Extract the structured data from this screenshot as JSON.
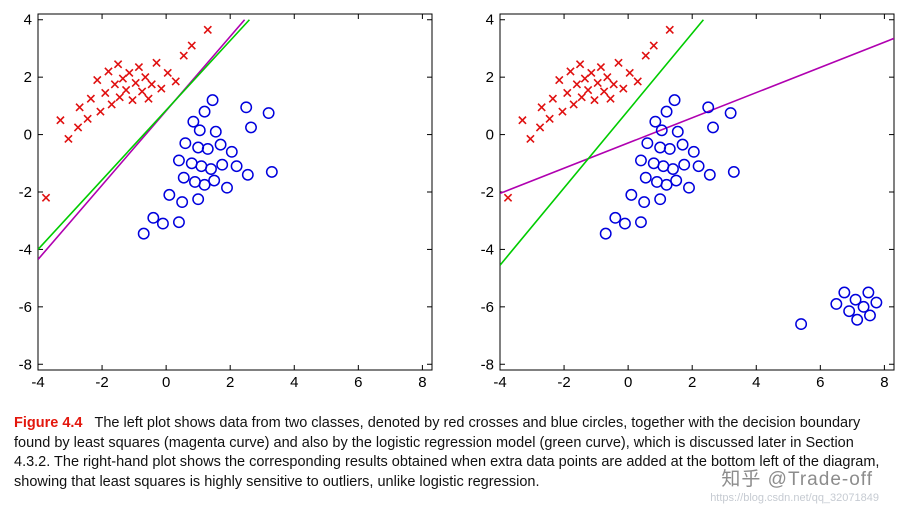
{
  "caption": {
    "label": "Figure 4.4",
    "label_color": "#e3170d",
    "text": "The left plot shows data from two classes, denoted by red crosses and blue circles, together with the decision boundary found by least squares (magenta curve) and also by the logistic regression model (green curve), which is discussed later in Section 4.3.2. The right-hand plot shows the corresponding results obtained when extra data points are added at the bottom left of the diagram, showing that least squares is highly sensitive to outliers, unlike logistic regression."
  },
  "watermarks": {
    "zhihu": "知乎 @Trade-off",
    "url": "https://blog.csdn.net/qq_32071849"
  },
  "colors": {
    "cross": "#e01010",
    "circle": "#0000dd",
    "least_squares": "#b000b0",
    "logistic": "#00cc00"
  },
  "chart_data": [
    {
      "type": "scatter",
      "title": "",
      "xlabel": "",
      "ylabel": "",
      "xlim": [
        -4,
        8.3
      ],
      "ylim": [
        -8.2,
        4.2
      ],
      "xticks": [
        -4,
        -2,
        0,
        2,
        4,
        6,
        8
      ],
      "yticks": [
        -8,
        -6,
        -4,
        -2,
        0,
        2,
        4
      ],
      "grid": false,
      "legend": "none",
      "series": [
        {
          "name": "class-1-red-crosses",
          "marker": "cross",
          "color": "#e01010",
          "points": [
            [
              -3.75,
              -2.2
            ],
            [
              -3.3,
              0.5
            ],
            [
              -3.05,
              -0.15
            ],
            [
              -2.75,
              0.25
            ],
            [
              -2.7,
              0.95
            ],
            [
              -2.45,
              0.55
            ],
            [
              -2.35,
              1.25
            ],
            [
              -2.15,
              1.9
            ],
            [
              -2.05,
              0.8
            ],
            [
              -1.9,
              1.45
            ],
            [
              -1.8,
              2.2
            ],
            [
              -1.7,
              1.05
            ],
            [
              -1.6,
              1.75
            ],
            [
              -1.5,
              2.45
            ],
            [
              -1.45,
              1.3
            ],
            [
              -1.35,
              1.95
            ],
            [
              -1.25,
              1.55
            ],
            [
              -1.15,
              2.15
            ],
            [
              -1.05,
              1.2
            ],
            [
              -0.95,
              1.8
            ],
            [
              -0.85,
              2.35
            ],
            [
              -0.75,
              1.5
            ],
            [
              -0.65,
              2.0
            ],
            [
              -0.55,
              1.25
            ],
            [
              -0.45,
              1.75
            ],
            [
              -0.3,
              2.5
            ],
            [
              -0.15,
              1.6
            ],
            [
              0.05,
              2.15
            ],
            [
              0.3,
              1.85
            ],
            [
              0.55,
              2.75
            ],
            [
              0.8,
              3.1
            ],
            [
              1.3,
              3.65
            ]
          ]
        },
        {
          "name": "class-2-blue-circles",
          "marker": "circle",
          "color": "#0000dd",
          "points": [
            [
              1.45,
              1.2
            ],
            [
              2.5,
              0.95
            ],
            [
              3.2,
              0.75
            ],
            [
              1.2,
              0.8
            ],
            [
              0.85,
              0.45
            ],
            [
              1.05,
              0.15
            ],
            [
              1.55,
              0.1
            ],
            [
              2.65,
              0.25
            ],
            [
              0.6,
              -0.3
            ],
            [
              1.0,
              -0.45
            ],
            [
              1.3,
              -0.5
            ],
            [
              1.7,
              -0.35
            ],
            [
              2.05,
              -0.6
            ],
            [
              0.4,
              -0.9
            ],
            [
              0.8,
              -1.0
            ],
            [
              1.1,
              -1.1
            ],
            [
              1.4,
              -1.2
            ],
            [
              1.75,
              -1.05
            ],
            [
              2.2,
              -1.1
            ],
            [
              2.55,
              -1.4
            ],
            [
              3.3,
              -1.3
            ],
            [
              0.55,
              -1.5
            ],
            [
              0.9,
              -1.65
            ],
            [
              1.2,
              -1.75
            ],
            [
              1.5,
              -1.6
            ],
            [
              1.9,
              -1.85
            ],
            [
              0.1,
              -2.1
            ],
            [
              0.5,
              -2.35
            ],
            [
              1.0,
              -2.25
            ],
            [
              -0.4,
              -2.9
            ],
            [
              -0.1,
              -3.1
            ],
            [
              0.4,
              -3.05
            ],
            [
              -0.7,
              -3.45
            ]
          ]
        }
      ],
      "lines": [
        {
          "name": "least-squares-boundary",
          "color": "#b000b0",
          "x1": -4,
          "y1": -4.35,
          "x2": 2.45,
          "y2": 4.0
        },
        {
          "name": "logistic-regression-boundary",
          "color": "#00cc00",
          "x1": -4,
          "y1": -4.0,
          "x2": 2.6,
          "y2": 4.0
        }
      ]
    },
    {
      "type": "scatter",
      "title": "",
      "xlabel": "",
      "ylabel": "",
      "xlim": [
        -4,
        8.3
      ],
      "ylim": [
        -8.2,
        4.2
      ],
      "xticks": [
        -4,
        -2,
        0,
        2,
        4,
        6,
        8
      ],
      "yticks": [
        -8,
        -6,
        -4,
        -2,
        0,
        2,
        4
      ],
      "grid": false,
      "legend": "none",
      "series": [
        {
          "name": "class-1-red-crosses",
          "marker": "cross",
          "color": "#e01010",
          "points": [
            [
              -3.75,
              -2.2
            ],
            [
              -3.3,
              0.5
            ],
            [
              -3.05,
              -0.15
            ],
            [
              -2.75,
              0.25
            ],
            [
              -2.7,
              0.95
            ],
            [
              -2.45,
              0.55
            ],
            [
              -2.35,
              1.25
            ],
            [
              -2.15,
              1.9
            ],
            [
              -2.05,
              0.8
            ],
            [
              -1.9,
              1.45
            ],
            [
              -1.8,
              2.2
            ],
            [
              -1.7,
              1.05
            ],
            [
              -1.6,
              1.75
            ],
            [
              -1.5,
              2.45
            ],
            [
              -1.45,
              1.3
            ],
            [
              -1.35,
              1.95
            ],
            [
              -1.25,
              1.55
            ],
            [
              -1.15,
              2.15
            ],
            [
              -1.05,
              1.2
            ],
            [
              -0.95,
              1.8
            ],
            [
              -0.85,
              2.35
            ],
            [
              -0.75,
              1.5
            ],
            [
              -0.65,
              2.0
            ],
            [
              -0.55,
              1.25
            ],
            [
              -0.45,
              1.75
            ],
            [
              -0.3,
              2.5
            ],
            [
              -0.15,
              1.6
            ],
            [
              0.05,
              2.15
            ],
            [
              0.3,
              1.85
            ],
            [
              0.55,
              2.75
            ],
            [
              0.8,
              3.1
            ],
            [
              1.3,
              3.65
            ]
          ]
        },
        {
          "name": "class-2-blue-circles",
          "marker": "circle",
          "color": "#0000dd",
          "points": [
            [
              1.45,
              1.2
            ],
            [
              2.5,
              0.95
            ],
            [
              3.2,
              0.75
            ],
            [
              1.2,
              0.8
            ],
            [
              0.85,
              0.45
            ],
            [
              1.05,
              0.15
            ],
            [
              1.55,
              0.1
            ],
            [
              2.65,
              0.25
            ],
            [
              0.6,
              -0.3
            ],
            [
              1.0,
              -0.45
            ],
            [
              1.3,
              -0.5
            ],
            [
              1.7,
              -0.35
            ],
            [
              2.05,
              -0.6
            ],
            [
              0.4,
              -0.9
            ],
            [
              0.8,
              -1.0
            ],
            [
              1.1,
              -1.1
            ],
            [
              1.4,
              -1.2
            ],
            [
              1.75,
              -1.05
            ],
            [
              2.2,
              -1.1
            ],
            [
              2.55,
              -1.4
            ],
            [
              3.3,
              -1.3
            ],
            [
              0.55,
              -1.5
            ],
            [
              0.9,
              -1.65
            ],
            [
              1.2,
              -1.75
            ],
            [
              1.5,
              -1.6
            ],
            [
              1.9,
              -1.85
            ],
            [
              0.1,
              -2.1
            ],
            [
              0.5,
              -2.35
            ],
            [
              1.0,
              -2.25
            ],
            [
              -0.4,
              -2.9
            ],
            [
              -0.1,
              -3.1
            ],
            [
              0.4,
              -3.05
            ],
            [
              -0.7,
              -3.45
            ]
          ]
        },
        {
          "name": "class-2-blue-circles-outliers",
          "marker": "circle",
          "color": "#0000dd",
          "points": [
            [
              5.4,
              -6.6
            ],
            [
              6.5,
              -5.9
            ],
            [
              6.75,
              -5.5
            ],
            [
              6.9,
              -6.15
            ],
            [
              7.1,
              -5.75
            ],
            [
              7.15,
              -6.45
            ],
            [
              7.35,
              -6.0
            ],
            [
              7.5,
              -5.5
            ],
            [
              7.55,
              -6.3
            ],
            [
              7.75,
              -5.85
            ]
          ]
        }
      ],
      "lines": [
        {
          "name": "least-squares-boundary",
          "color": "#b000b0",
          "x1": -4,
          "y1": -2.05,
          "x2": 8.3,
          "y2": 3.35
        },
        {
          "name": "logistic-regression-boundary",
          "color": "#00cc00",
          "x1": -4,
          "y1": -4.55,
          "x2": 2.35,
          "y2": 4.0
        }
      ]
    }
  ]
}
